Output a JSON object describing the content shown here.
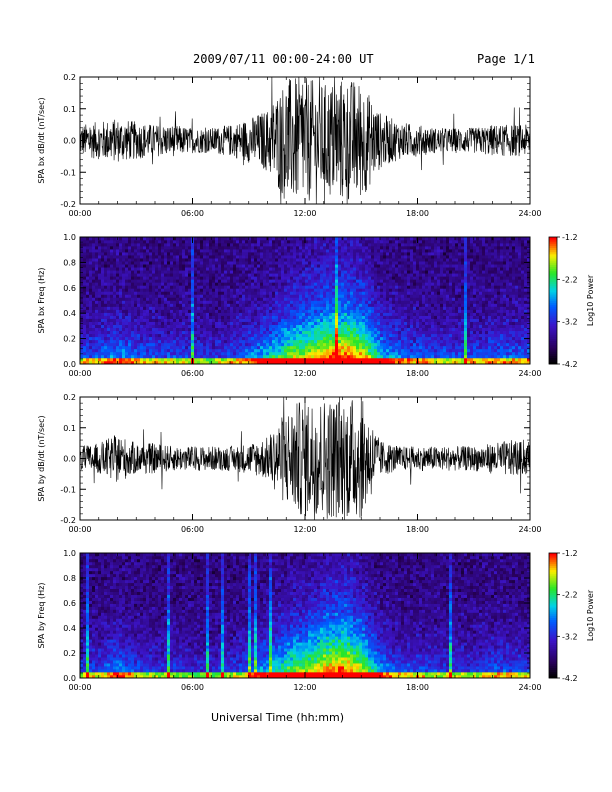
{
  "header": {
    "title": "2009/07/11   00:00-24:00 UT",
    "page": "Page 1/1"
  },
  "xlabel": "Universal Time (hh:mm)",
  "colors": {
    "trace": "#000000",
    "background": "#ffffff"
  },
  "chart_data": [
    {
      "type": "line",
      "ylabel": "SPA bx dB/dt (nT/sec)",
      "xticks": [
        "00:00",
        "06:00",
        "12:00",
        "18:00",
        "24:00"
      ],
      "yticks": [
        "-0.2",
        "-0.1",
        "0.0",
        "0.1",
        "0.2"
      ],
      "ylim": [
        -0.2,
        0.2
      ],
      "xlim_hours": [
        0,
        24
      ],
      "envelope": {
        "x_hours": [
          0,
          1,
          2,
          3,
          4,
          5,
          6,
          7,
          8,
          9,
          10,
          11,
          12,
          13,
          14,
          15,
          16,
          17,
          18,
          19,
          20,
          21,
          22,
          23,
          24
        ],
        "amplitude": [
          0.05,
          0.06,
          0.07,
          0.06,
          0.05,
          0.05,
          0.04,
          0.04,
          0.05,
          0.07,
          0.1,
          0.2,
          0.2,
          0.18,
          0.2,
          0.19,
          0.09,
          0.06,
          0.05,
          0.04,
          0.04,
          0.04,
          0.05,
          0.05,
          0.05
        ]
      }
    },
    {
      "type": "heatmap",
      "ylabel": "SPA bx Freq (Hz)",
      "xticks": [
        "00:00",
        "06:00",
        "12:00",
        "18:00",
        "24:00"
      ],
      "yticks": [
        "0.0",
        "0.2",
        "0.4",
        "0.6",
        "0.8",
        "1.0"
      ],
      "ylim": [
        0,
        1.0
      ],
      "colorbar": {
        "label": "Log10 Power",
        "ticks": [
          "-1.2",
          "-2.2",
          "-3.2",
          "-4.2"
        ],
        "range": [
          -4.2,
          -1.2
        ]
      },
      "activity_by_hour": [
        0.3,
        0.35,
        0.45,
        0.35,
        0.3,
        0.3,
        0.25,
        0.25,
        0.3,
        0.4,
        0.55,
        0.75,
        0.85,
        0.95,
        1.0,
        0.9,
        0.55,
        0.4,
        0.35,
        0.3,
        0.3,
        0.3,
        0.35,
        0.35,
        0.35
      ]
    },
    {
      "type": "line",
      "ylabel": "SPA by dB/dt (nT/sec)",
      "xticks": [
        "00:00",
        "06:00",
        "12:00",
        "18:00",
        "24:00"
      ],
      "yticks": [
        "-0.2",
        "-0.1",
        "0.0",
        "0.1",
        "0.2"
      ],
      "ylim": [
        -0.2,
        0.2
      ],
      "xlim_hours": [
        0,
        24
      ],
      "envelope": {
        "x_hours": [
          0,
          1,
          2,
          3,
          4,
          5,
          6,
          7,
          8,
          9,
          10,
          11,
          12,
          13,
          14,
          15,
          16,
          17,
          18,
          19,
          20,
          21,
          22,
          23,
          24
        ],
        "amplitude": [
          0.04,
          0.05,
          0.08,
          0.05,
          0.05,
          0.04,
          0.04,
          0.04,
          0.04,
          0.05,
          0.07,
          0.16,
          0.2,
          0.2,
          0.2,
          0.2,
          0.06,
          0.04,
          0.04,
          0.04,
          0.04,
          0.04,
          0.05,
          0.06,
          0.05
        ]
      }
    },
    {
      "type": "heatmap",
      "ylabel": "SPA by Freq (Hz)",
      "xticks": [
        "00:00",
        "06:00",
        "12:00",
        "18:00",
        "24:00"
      ],
      "yticks": [
        "0.0",
        "0.2",
        "0.4",
        "0.6",
        "0.8",
        "1.0"
      ],
      "ylim": [
        0,
        1.0
      ],
      "colorbar": {
        "label": "Log10 Power",
        "ticks": [
          "-1.2",
          "-2.2",
          "-3.2",
          "-4.2"
        ],
        "range": [
          -4.2,
          -1.2
        ]
      },
      "activity_by_hour": [
        0.25,
        0.3,
        0.45,
        0.3,
        0.25,
        0.25,
        0.2,
        0.2,
        0.25,
        0.35,
        0.5,
        0.7,
        0.8,
        0.95,
        1.0,
        0.85,
        0.45,
        0.3,
        0.3,
        0.25,
        0.25,
        0.25,
        0.35,
        0.3,
        0.3
      ]
    }
  ]
}
